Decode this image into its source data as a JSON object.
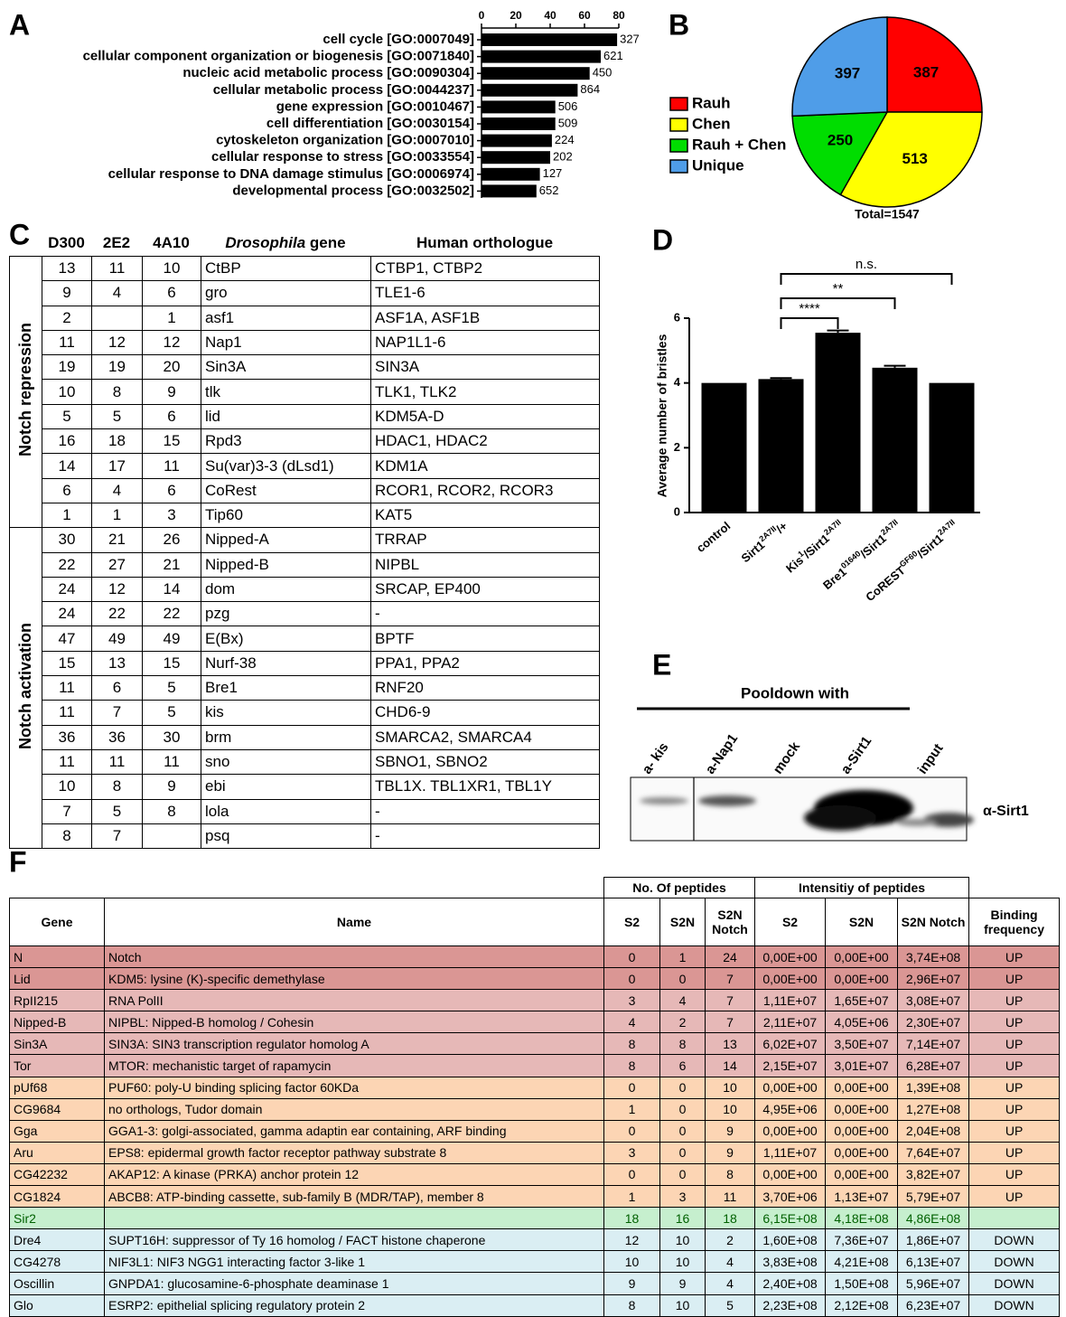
{
  "chart_data": [
    {
      "label": "A",
      "type": "hbar",
      "categories": [
        "cell cycle [GO:0007049]",
        "cellular component organization or biogenesis [GO:0071840]",
        "nucleic acid metabolic process [GO:0090304]",
        "cellular metabolic process [GO:0044237]",
        "gene expression [GO:0010467]",
        "cell differentiation [GO:0030154]",
        "cytoskeleton organization [GO:0007010]",
        "cellular response to stress [GO:0033554]",
        "cellular response to DNA damage stimulus [GO:0006974]",
        "developmental process [GO:0032502]"
      ],
      "values": [
        79,
        69.5,
        63,
        56,
        43,
        43,
        41,
        40,
        34,
        32
      ],
      "bar_labels": [
        327,
        621,
        450,
        864,
        506,
        509,
        224,
        202,
        127,
        652
      ],
      "color": "#000000",
      "xlim": [
        0,
        80
      ],
      "xticks": [
        0,
        20,
        40,
        60,
        80
      ]
    },
    {
      "label": "B",
      "type": "pie",
      "categories": [
        "Rauh",
        "Chen",
        "Rauh + Chen",
        "Unique"
      ],
      "values": [
        387,
        513,
        250,
        397
      ],
      "colors": [
        "#ff0000",
        "#ffff00",
        "#00dd00",
        "#4f9de8"
      ],
      "total_label": "Total=1547"
    },
    {
      "label": "D",
      "type": "bar",
      "ylabel": "Average number of bristles",
      "categories": [
        [
          "control"
        ],
        [
          "Sirt1",
          "2A7II",
          "/+"
        ],
        [
          "Kis",
          "1",
          "/Sirt1",
          "2A7II"
        ],
        [
          "Bre1",
          "01640",
          "/Sirt1",
          "2A7II"
        ],
        [
          "CoREST",
          "GF60",
          "/Sirt1",
          "2A7II"
        ]
      ],
      "values": [
        4.0,
        4.12,
        5.55,
        4.47,
        4.0
      ],
      "errors": [
        0,
        0.03,
        0.07,
        0.06,
        0
      ],
      "ylim": [
        0,
        6
      ],
      "yticks": [
        0,
        2,
        4,
        6
      ],
      "color": "#000000",
      "significance": [
        "****",
        "**",
        "n.s."
      ]
    }
  ],
  "table_c": {
    "label": "C",
    "columns": [
      "D300",
      "2E2",
      "4A10",
      {
        "italic": "Drosophila",
        "text": "gene"
      },
      "Human orthologue"
    ],
    "groups": [
      {
        "name": "Notch repression",
        "rows": [
          [
            13,
            11,
            10,
            "CtBP",
            "CTBP1, CTBP2"
          ],
          [
            9,
            4,
            6,
            "gro",
            "TLE1-6"
          ],
          [
            2,
            null,
            1,
            "asf1",
            "ASF1A, ASF1B"
          ],
          [
            11,
            12,
            12,
            "Nap1",
            "NAP1L1-6"
          ],
          [
            19,
            19,
            20,
            "Sin3A",
            "SIN3A"
          ],
          [
            10,
            8,
            9,
            "tlk",
            "TLK1, TLK2"
          ],
          [
            5,
            5,
            6,
            "lid",
            "KDM5A-D"
          ],
          [
            16,
            18,
            15,
            "Rpd3",
            "HDAC1, HDAC2"
          ],
          [
            14,
            17,
            11,
            "Su(var)3-3 (dLsd1)",
            "KDM1A"
          ],
          [
            6,
            4,
            6,
            "CoRest",
            "RCOR1, RCOR2, RCOR3"
          ],
          [
            1,
            1,
            3,
            "Tip60",
            "KAT5"
          ]
        ]
      },
      {
        "name": "Notch activation",
        "rows": [
          [
            30,
            21,
            26,
            "Nipped-A",
            "TRRAP"
          ],
          [
            22,
            27,
            21,
            "Nipped-B",
            "NIPBL"
          ],
          [
            24,
            12,
            14,
            "dom",
            "SRCAP, EP400"
          ],
          [
            24,
            22,
            22,
            "pzg",
            "-"
          ],
          [
            47,
            49,
            49,
            "E(Bx)",
            "BPTF"
          ],
          [
            15,
            13,
            15,
            "Nurf-38",
            "PPA1, PPA2"
          ],
          [
            11,
            6,
            5,
            "Bre1",
            "RNF20"
          ],
          [
            11,
            7,
            5,
            "kis",
            "CHD6-9"
          ],
          [
            36,
            36,
            30,
            "brm",
            "SMARCA2, SMARCA4"
          ],
          [
            11,
            11,
            11,
            "sno",
            "SBNO1, SBNO2"
          ],
          [
            10,
            8,
            9,
            "ebi",
            "TBL1X. TBL1XR1, TBL1Y"
          ],
          [
            7,
            5,
            8,
            "lola",
            "-"
          ],
          [
            8,
            7,
            null,
            "psq",
            "-"
          ]
        ]
      }
    ]
  },
  "blot_e": {
    "label": "E",
    "title": "Pooldown with",
    "lanes": [
      "a- kis",
      "a-Nap1",
      "mock",
      "a-Sirt1",
      "input"
    ],
    "antibody": "α-Sirt1"
  },
  "table_f": {
    "label": "F",
    "group_headers": [
      "No. Of peptides",
      "Intensitiy of peptides"
    ],
    "columns": [
      "Gene",
      "Name",
      "S2",
      "S2N",
      "S2N Notch",
      "S2",
      "S2N",
      "S2N Notch",
      "Binding frequency"
    ],
    "rows": [
      {
        "color": "#da9694",
        "cells": [
          "N",
          "Notch",
          0,
          1,
          24,
          "0,00E+00",
          "0,00E+00",
          "3,74E+08",
          "UP"
        ]
      },
      {
        "color": "#da9694",
        "cells": [
          "Lid",
          "KDM5: lysine (K)-specific demethylase",
          0,
          0,
          7,
          "0,00E+00",
          "0,00E+00",
          "2,96E+07",
          "UP"
        ]
      },
      {
        "color": "#e6b8b7",
        "cells": [
          "RpII215",
          "RNA PolII",
          3,
          4,
          7,
          "1,11E+07",
          "1,65E+07",
          "3,08E+07",
          "UP"
        ]
      },
      {
        "color": "#e6b8b7",
        "cells": [
          "Nipped-B",
          "NIPBL: Nipped-B homolog / Cohesin",
          4,
          2,
          7,
          "2,11E+07",
          "4,05E+06",
          "2,30E+07",
          "UP"
        ]
      },
      {
        "color": "#e6b8b7",
        "cells": [
          "Sin3A",
          "SIN3A: SIN3 transcription regulator homolog A",
          8,
          8,
          13,
          "6,02E+07",
          "3,50E+07",
          "7,14E+07",
          "UP"
        ]
      },
      {
        "color": "#e6b8b7",
        "cells": [
          "Tor",
          "MTOR: mechanistic target of rapamycin",
          8,
          6,
          14,
          "2,15E+07",
          "3,01E+07",
          "6,28E+07",
          "UP"
        ]
      },
      {
        "color": "#fcd5b4",
        "cells": [
          "pUf68",
          "PUF60: poly-U binding splicing factor 60KDa",
          0,
          0,
          10,
          "0,00E+00",
          "0,00E+00",
          "1,39E+08",
          "UP"
        ]
      },
      {
        "color": "#fcd5b4",
        "cells": [
          "CG9684",
          "no orthologs, Tudor domain",
          1,
          0,
          10,
          "4,95E+06",
          "0,00E+00",
          "1,27E+08",
          "UP"
        ]
      },
      {
        "color": "#fcd5b4",
        "cells": [
          "Gga",
          "GGA1-3: golgi-associated, gamma adaptin ear containing, ARF binding",
          0,
          0,
          9,
          "0,00E+00",
          "0,00E+00",
          "2,04E+08",
          "UP"
        ]
      },
      {
        "color": "#fcd5b4",
        "cells": [
          "Aru",
          "EPS8: epidermal growth factor receptor pathway substrate 8",
          3,
          0,
          9,
          "1,11E+07",
          "0,00E+00",
          "7,64E+07",
          "UP"
        ]
      },
      {
        "color": "#fcd5b4",
        "cells": [
          "CG42232",
          "AKAP12: A kinase (PRKA) anchor protein 12",
          0,
          0,
          8,
          "0,00E+00",
          "0,00E+00",
          "3,82E+07",
          "UP"
        ]
      },
      {
        "color": "#fcd5b4",
        "cells": [
          "CG1824",
          "ABCB8: ATP-binding cassette, sub-family B (MDR/TAP), member 8",
          1,
          3,
          11,
          "3,70E+06",
          "1,13E+07",
          "5,79E+07",
          "UP"
        ]
      },
      {
        "color": "#c6efce",
        "text_color": "#006100",
        "cells": [
          "Sir2",
          null,
          18,
          16,
          18,
          "6,15E+08",
          "4,18E+08",
          "4,86E+08",
          null
        ]
      },
      {
        "color": "#daeef3",
        "cells": [
          "Dre4",
          "SUPT16H: suppressor of Ty 16 homolog / FACT histone chaperone",
          12,
          10,
          2,
          "1,60E+08",
          "7,36E+07",
          "1,86E+07",
          "DOWN"
        ]
      },
      {
        "color": "#daeef3",
        "cells": [
          "CG4278",
          "NIF3L1: NIF3 NGG1 interacting factor 3-like 1",
          10,
          10,
          4,
          "3,83E+08",
          "4,21E+08",
          "6,13E+07",
          "DOWN"
        ]
      },
      {
        "color": "#daeef3",
        "cells": [
          "Oscillin",
          "GNPDA1: glucosamine-6-phosphate deaminase 1",
          9,
          9,
          4,
          "2,40E+08",
          "1,50E+08",
          "5,96E+07",
          "DOWN"
        ]
      },
      {
        "color": "#daeef3",
        "cells": [
          "Glo",
          "ESRP2: epithelial splicing regulatory protein 2",
          8,
          10,
          5,
          "2,23E+08",
          "2,12E+08",
          "6,23E+07",
          "DOWN"
        ]
      }
    ]
  }
}
